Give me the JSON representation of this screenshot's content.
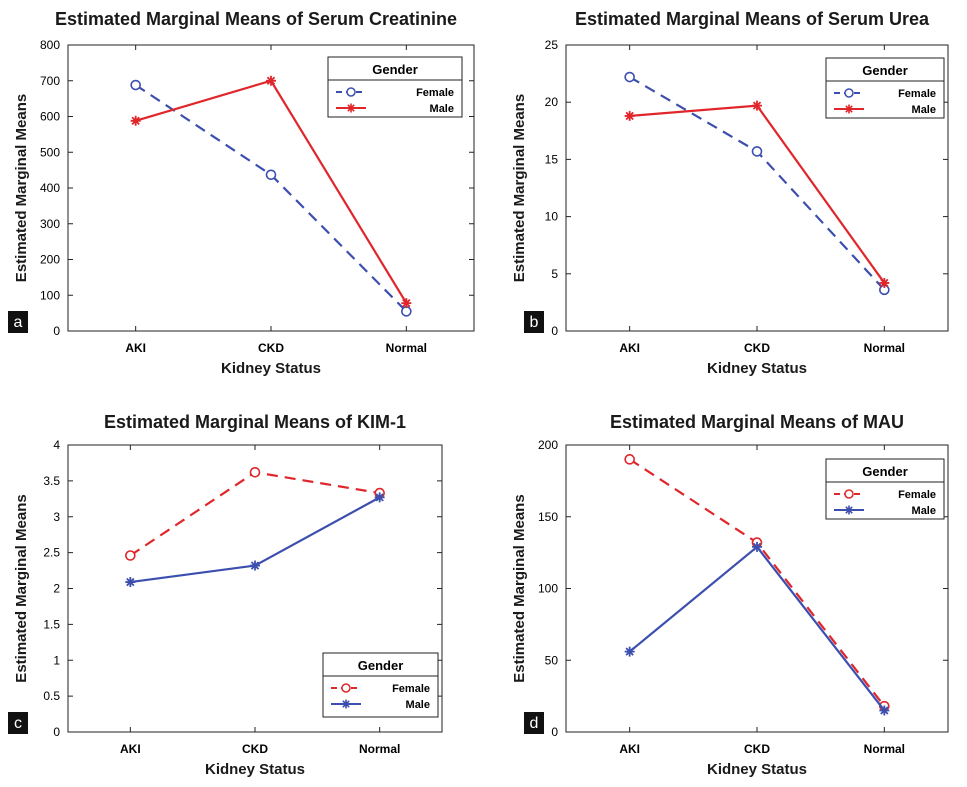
{
  "chart_data": [
    {
      "type": "line",
      "title": "Estimated Marginal Means of Serum Creatinine",
      "xlabel": "Kidney Status",
      "ylabel": "Estimated Marginal Means",
      "categories": [
        "AKI",
        "CKD",
        "Normal"
      ],
      "ylim": [
        0,
        800
      ],
      "yticks": [
        "0",
        "100",
        "200",
        "300",
        "400",
        "500",
        "600",
        "700",
        "800"
      ],
      "legend": {
        "title": "Gender",
        "position": "top-right"
      },
      "panel_letter": "a",
      "series": [
        {
          "name": "Female",
          "values": [
            688,
            437,
            55
          ],
          "color": "#3d4fae",
          "dash": true,
          "marker": "circle"
        },
        {
          "name": "Male",
          "values": [
            588,
            700,
            78
          ],
          "color": "#e0262b",
          "dash": false,
          "marker": "star"
        }
      ]
    },
    {
      "type": "line",
      "title": "Estimated Marginal Means of Serum Urea",
      "xlabel": "Kidney Status",
      "ylabel": "Estimated Marginal Means",
      "categories": [
        "AKI",
        "CKD",
        "Normal"
      ],
      "ylim": [
        0,
        25
      ],
      "yticks": [
        "0",
        "5",
        "10",
        "15",
        "20",
        "25"
      ],
      "legend": {
        "title": "Gender",
        "position": "top-right"
      },
      "panel_letter": "b",
      "series": [
        {
          "name": "Female",
          "values": [
            22.2,
            15.7,
            3.6
          ],
          "color": "#3d4fae",
          "dash": true,
          "marker": "circle"
        },
        {
          "name": "Male",
          "values": [
            18.8,
            19.7,
            4.2
          ],
          "color": "#e0262b",
          "dash": false,
          "marker": "star"
        }
      ]
    },
    {
      "type": "line",
      "title": "Estimated Marginal Means of KIM-1",
      "xlabel": "Kidney Status",
      "ylabel": "Estimated Marginal Means",
      "categories": [
        "AKI",
        "CKD",
        "Normal"
      ],
      "ylim": [
        0,
        4
      ],
      "yticks": [
        "0",
        "0.5",
        "1",
        "1.5",
        "2",
        "2.5",
        "3",
        "3.5",
        "4"
      ],
      "legend": {
        "title": "Gender",
        "position": "bottom-right"
      },
      "panel_letter": "c",
      "series": [
        {
          "name": "Female",
          "values": [
            2.46,
            3.62,
            3.33
          ],
          "color": "#e0262b",
          "dash": true,
          "marker": "circle"
        },
        {
          "name": "Male",
          "values": [
            2.09,
            2.32,
            3.27
          ],
          "color": "#3d4fae",
          "dash": false,
          "marker": "star"
        }
      ]
    },
    {
      "type": "line",
      "title": "Estimated Marginal Means of MAU",
      "xlabel": "Kidney Status",
      "ylabel": "Estimated Marginal Means",
      "categories": [
        "AKI",
        "CKD",
        "Normal"
      ],
      "ylim": [
        0,
        200
      ],
      "yticks": [
        "0",
        "50",
        "100",
        "150",
        "200"
      ],
      "legend": {
        "title": "Gender",
        "position": "top-right"
      },
      "panel_letter": "d",
      "series": [
        {
          "name": "Female",
          "values": [
            190,
            132,
            18
          ],
          "color": "#e0262b",
          "dash": true,
          "marker": "circle"
        },
        {
          "name": "Male",
          "values": [
            56,
            129,
            15
          ],
          "color": "#3d4fae",
          "dash": false,
          "marker": "star"
        }
      ]
    }
  ]
}
